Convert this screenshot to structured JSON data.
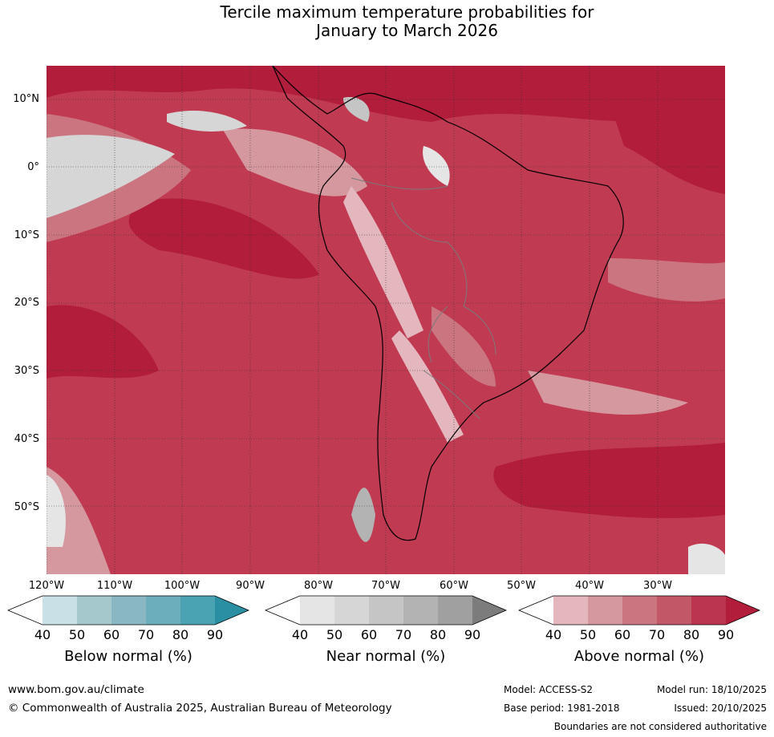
{
  "title_line1": "Tercile maximum temperature probabilities for",
  "title_line2": "January to March 2026",
  "lat_labels": [
    "10°N",
    "0°",
    "10°S",
    "20°S",
    "30°S",
    "40°S",
    "50°S"
  ],
  "lon_labels": [
    "120°W",
    "110°W",
    "100°W",
    "90°W",
    "80°W",
    "70°W",
    "60°W",
    "50°W",
    "40°W",
    "30°W"
  ],
  "colorbars": [
    {
      "label": "Below normal (%)",
      "ticks": [
        "40",
        "50",
        "60",
        "70",
        "80",
        "90"
      ],
      "colors": [
        "#ffffff",
        "#c9e0e6",
        "#a5c8cd",
        "#8ab8c2",
        "#6caebb",
        "#49a3b3",
        "#2a8fa3"
      ]
    },
    {
      "label": "Near normal (%)",
      "ticks": [
        "40",
        "50",
        "60",
        "70",
        "80",
        "90"
      ],
      "colors": [
        "#ffffff",
        "#e5e5e5",
        "#d6d6d6",
        "#c5c5c5",
        "#b3b3b3",
        "#a0a0a0",
        "#7c7c7c"
      ]
    },
    {
      "label": "Above normal (%)",
      "ticks": [
        "40",
        "50",
        "60",
        "70",
        "80",
        "90"
      ],
      "colors": [
        "#ffffff",
        "#e3b7bd",
        "#d5989f",
        "#ca7580",
        "#c25867",
        "#bb3550",
        "#b11d3a"
      ]
    }
  ],
  "footer": {
    "website": "www.bom.gov.au/climate",
    "copyright": "© Commonwealth of Australia 2025, Australian Bureau of Meteorology",
    "model": "Model: ACCESS-S2",
    "base_period": "Base period: 1981-2018",
    "model_run": "Model run: 18/10/2025",
    "issued": "Issued: 20/10/2025",
    "disclaimer": "Boundaries are not considered authoritative"
  }
}
